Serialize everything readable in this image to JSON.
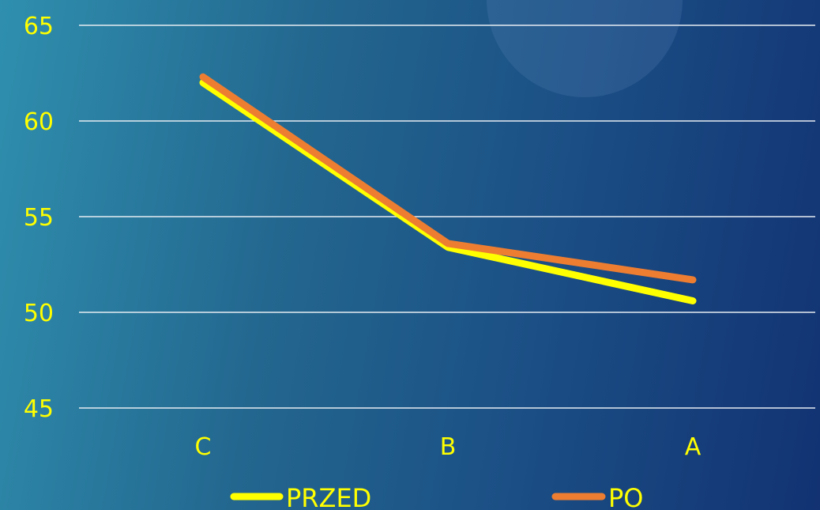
{
  "colors": {
    "axis_text": "#ffff00",
    "gridline": "#e6ecf2",
    "series_przed": "#ffff00",
    "series_po": "#ed7d31"
  },
  "chart_data": {
    "type": "line",
    "title": "",
    "xlabel": "",
    "ylabel": "",
    "categories": [
      "C",
      "B",
      "A"
    ],
    "series": [
      {
        "name": "PRZED",
        "values": [
          62.0,
          53.4,
          50.6
        ]
      },
      {
        "name": "PO",
        "values": [
          62.3,
          53.6,
          51.7
        ]
      }
    ],
    "ylim": [
      45,
      65
    ],
    "yticks": [
      "45",
      "50",
      "55",
      "60",
      "65"
    ],
    "grid": true,
    "legend_position": "bottom"
  }
}
